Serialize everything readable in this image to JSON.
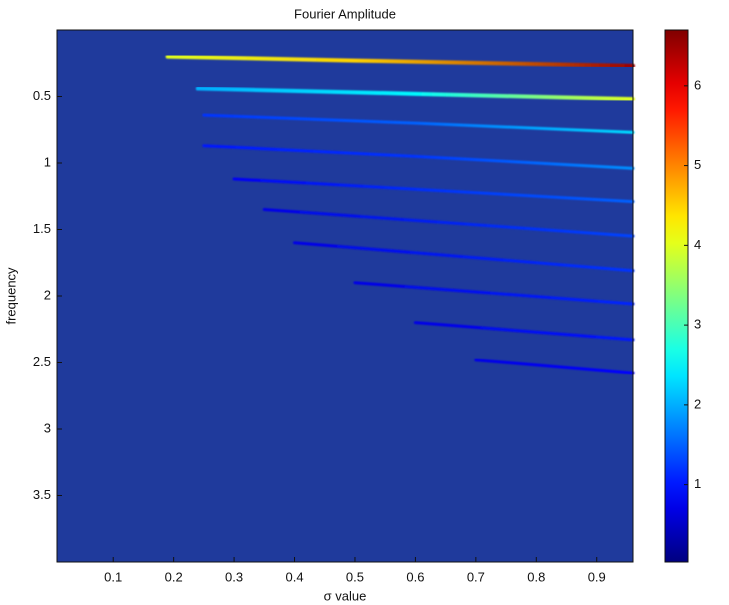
{
  "chart_data": {
    "type": "heatmap",
    "title": "Fourier Amplitude",
    "xlabel": "σ value",
    "ylabel": "frequency",
    "xlim": [
      0.007,
      0.96
    ],
    "ylim": [
      0,
      4
    ],
    "y_inverted": true,
    "xticks": [
      0.1,
      0.2,
      0.3,
      0.4,
      0.5,
      0.6,
      0.7,
      0.8,
      0.9
    ],
    "yticks": [
      0.5,
      1,
      1.5,
      2,
      2.5,
      3,
      3.5
    ],
    "background_color": "#1f3a9c",
    "colormap": "jet",
    "clim": [
      0.03,
      6.7
    ],
    "cticks": [
      1,
      2,
      3,
      4,
      5,
      6
    ],
    "series": [
      {
        "x": [
          0.19,
          0.5,
          0.96
        ],
        "y": [
          0.2,
          0.23,
          0.27
        ],
        "values": [
          4,
          4.5,
          6.5
        ]
      },
      {
        "x": [
          0.24,
          0.6,
          0.96
        ],
        "y": [
          0.44,
          0.48,
          0.52
        ],
        "values": [
          2,
          2.5,
          4
        ]
      },
      {
        "x": [
          0.25,
          0.6,
          0.96
        ],
        "y": [
          0.64,
          0.7,
          0.77
        ],
        "values": [
          1.2,
          1.5,
          2.3
        ]
      },
      {
        "x": [
          0.25,
          0.6,
          0.96
        ],
        "y": [
          0.87,
          0.95,
          1.04
        ],
        "values": [
          1,
          1.2,
          1.8
        ]
      },
      {
        "x": [
          0.3,
          0.96
        ],
        "y": [
          1.12,
          1.29
        ],
        "values": [
          0.8,
          1.5
        ]
      },
      {
        "x": [
          0.35,
          0.96
        ],
        "y": [
          1.35,
          1.55
        ],
        "values": [
          0.7,
          1.3
        ]
      },
      {
        "x": [
          0.4,
          0.96
        ],
        "y": [
          1.6,
          1.81
        ],
        "values": [
          0.7,
          1.2
        ]
      },
      {
        "x": [
          0.5,
          0.96
        ],
        "y": [
          1.9,
          2.06
        ],
        "values": [
          0.7,
          1.1
        ]
      },
      {
        "x": [
          0.6,
          0.96
        ],
        "y": [
          2.2,
          2.33
        ],
        "values": [
          0.7,
          1
        ]
      },
      {
        "x": [
          0.7,
          0.96
        ],
        "y": [
          2.48,
          2.58
        ],
        "values": [
          0.7,
          0.9
        ]
      }
    ]
  }
}
